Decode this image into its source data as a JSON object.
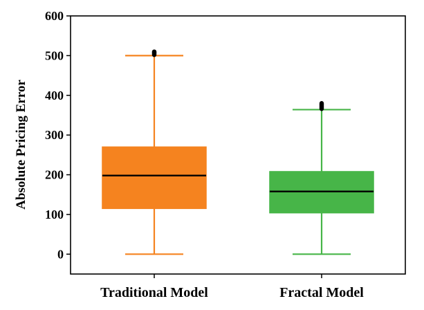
{
  "chart_data": {
    "type": "box",
    "title": "",
    "xlabel": "",
    "ylabel": "Absolute Pricing Error",
    "ylim": [
      -50,
      600
    ],
    "yticks": [
      0,
      100,
      200,
      300,
      400,
      500,
      600
    ],
    "grid": false,
    "legend": "none",
    "categories": [
      "Traditional Model",
      "Fractal Model"
    ],
    "boxes": [
      {
        "category": "Traditional Model",
        "color": "#f5831f",
        "whisker_low": 0,
        "q1": 115,
        "median": 198,
        "q3": 270,
        "whisker_high": 500,
        "outliers": [
          502,
          504,
          505,
          507,
          508,
          509,
          510
        ]
      },
      {
        "category": "Fractal Model",
        "color": "#47b548",
        "whisker_low": 0,
        "q1": 104,
        "median": 158,
        "q3": 208,
        "whisker_high": 364,
        "outliers": [
          366,
          368,
          370,
          372,
          374,
          376,
          378,
          380
        ]
      }
    ]
  }
}
